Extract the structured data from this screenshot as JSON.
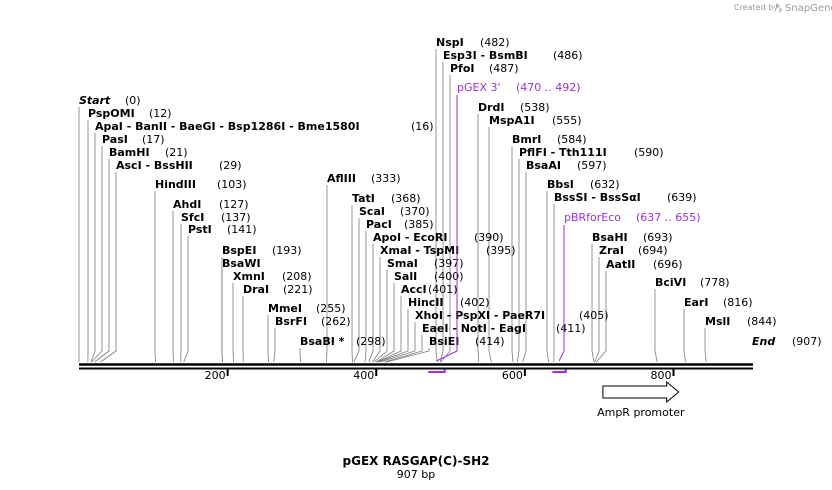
{
  "branding": {
    "created_by": "Created by",
    "brand": "SnapGene",
    "logo_icon": "snapgene-logo-icon"
  },
  "map": {
    "title": "pGEX RASGAP(C)-SH2",
    "length_label": "907 bp",
    "total_bp": 907,
    "ticks": [
      {
        "bp": 200,
        "label": "200"
      },
      {
        "bp": 400,
        "label": "400"
      },
      {
        "bp": 600,
        "label": "600"
      },
      {
        "bp": 800,
        "label": "800"
      }
    ]
  },
  "sites": [
    {
      "name": "Start",
      "pos": "(0)",
      "bp": 0,
      "italic": true
    },
    {
      "name": "PspOMI",
      "pos": "(12)",
      "bp": 12
    },
    {
      "name": "ApaI  -  BanII  -  BaeGI  -  Bsp1286I  -  Bme1580I",
      "pos": "(16)",
      "bp": 16
    },
    {
      "name": "PasI",
      "pos": "(17)",
      "bp": 17
    },
    {
      "name": "BamHI",
      "pos": "(21)",
      "bp": 21
    },
    {
      "name": "AscI  -  BssHII",
      "pos": "(29)",
      "bp": 29
    },
    {
      "name": "HindIII",
      "pos": "(103)",
      "bp": 103
    },
    {
      "name": "AhdI",
      "pos": "(127)",
      "bp": 127
    },
    {
      "name": "SfcI",
      "pos": "(137)",
      "bp": 137
    },
    {
      "name": "PstI",
      "pos": "(141)",
      "bp": 141
    },
    {
      "name": "BspEI",
      "pos": "(193)",
      "bp": 193
    },
    {
      "name": "BsaWI",
      "pos": "",
      "bp": 193
    },
    {
      "name": "XmnI",
      "pos": "(208)",
      "bp": 208
    },
    {
      "name": "DraI",
      "pos": "(221)",
      "bp": 221
    },
    {
      "name": "MmeI",
      "pos": "(255)",
      "bp": 255
    },
    {
      "name": "BsrFI",
      "pos": "(262)",
      "bp": 262
    },
    {
      "name": "BsaBI *",
      "pos": "(298)",
      "bp": 298
    },
    {
      "name": "AflIII",
      "pos": "(333)",
      "bp": 333
    },
    {
      "name": "TatI",
      "pos": "(368)",
      "bp": 368
    },
    {
      "name": "ScaI",
      "pos": "(370)",
      "bp": 370
    },
    {
      "name": "PacI",
      "pos": "(385)",
      "bp": 385
    },
    {
      "name": "ApoI  -  EcoRI",
      "pos": "(390)",
      "bp": 390
    },
    {
      "name": "XmaI  -  TspMI",
      "pos": "(395)",
      "bp": 395
    },
    {
      "name": "SmaI",
      "pos": "(397)",
      "bp": 397
    },
    {
      "name": "SalI",
      "pos": "(400)",
      "bp": 400
    },
    {
      "name": "AccI",
      "pos": "(401)",
      "bp": 401
    },
    {
      "name": "HincII",
      "pos": "(402)",
      "bp": 402
    },
    {
      "name": "XhoI  -  PspXI  -  PaeR7I",
      "pos": "(405)",
      "bp": 405
    },
    {
      "name": "EaeI  -  NotI  -  EagI",
      "pos": "(411)",
      "bp": 411
    },
    {
      "name": "BsiEI",
      "pos": "(414)",
      "bp": 414
    },
    {
      "name": "NspI",
      "pos": "(482)",
      "bp": 482
    },
    {
      "name": "Esp3I  -  BsmBI",
      "pos": "(486)",
      "bp": 486
    },
    {
      "name": "PfoI",
      "pos": "(487)",
      "bp": 487
    },
    {
      "name": "DrdI",
      "pos": "(538)",
      "bp": 538
    },
    {
      "name": "MspA1I",
      "pos": "(555)",
      "bp": 555
    },
    {
      "name": "BmrI",
      "pos": "(584)",
      "bp": 584
    },
    {
      "name": "PflFI  -  Tth111I",
      "pos": "(590)",
      "bp": 590
    },
    {
      "name": "BsaAI",
      "pos": "(597)",
      "bp": 597
    },
    {
      "name": "BbsI",
      "pos": "(632)",
      "bp": 632
    },
    {
      "name": "BssSI  -  BssSαI",
      "pos": "(639)",
      "bp": 639
    },
    {
      "name": "BsaHI",
      "pos": "(693)",
      "bp": 693
    },
    {
      "name": "ZraI",
      "pos": "(694)",
      "bp": 694
    },
    {
      "name": "AatII",
      "pos": "(696)",
      "bp": 696
    },
    {
      "name": "BciVI",
      "pos": "(778)",
      "bp": 778
    },
    {
      "name": "EarI",
      "pos": "(816)",
      "bp": 816
    },
    {
      "name": "MslI",
      "pos": "(844)",
      "bp": 844
    },
    {
      "name": "End",
      "pos": "(907)",
      "bp": 907,
      "italic": true
    }
  ],
  "primers": [
    {
      "name": "pGEX 3'",
      "range": "(470 .. 492)",
      "start_bp": 470,
      "end_bp": 492,
      "direction": "reverse"
    },
    {
      "name": "pBRforEco",
      "range": "(637 .. 655)",
      "start_bp": 637,
      "end_bp": 655,
      "direction": "forward"
    }
  ],
  "features": [
    {
      "name": "AmpR promoter",
      "start_bp": 705,
      "end_bp": 807,
      "direction": "forward"
    }
  ],
  "colors": {
    "primer": "#9b30d9",
    "backbone": "#000000",
    "leader": "#7a7a7a"
  }
}
